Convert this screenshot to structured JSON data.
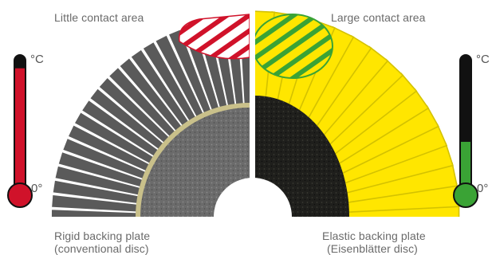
{
  "left_panel": {
    "top_caption": "Little contact area",
    "bottom_caption_line1": "Rigid backing plate",
    "bottom_caption_line2": "(conventional disc)",
    "flap_color": "#5a5a5a",
    "disc_color": "#6b6b6b",
    "contact_color": "#d0122a"
  },
  "right_panel": {
    "top_caption": "Large contact area",
    "bottom_caption_line1": "Elastic backing plate",
    "bottom_caption_line2": "(Eisenblätter disc)",
    "flap_color": "#ffe600",
    "disc_color": "#1f1f1c",
    "contact_color": "#3aa335"
  },
  "thermometer_left": {
    "unit_label": "°C",
    "zero_label": "0°",
    "fill_color": "#d0122a",
    "level": 0.92
  },
  "thermometer_right": {
    "unit_label": "°C",
    "zero_label": "0°",
    "fill_color": "#3aa335",
    "level": 0.38
  }
}
